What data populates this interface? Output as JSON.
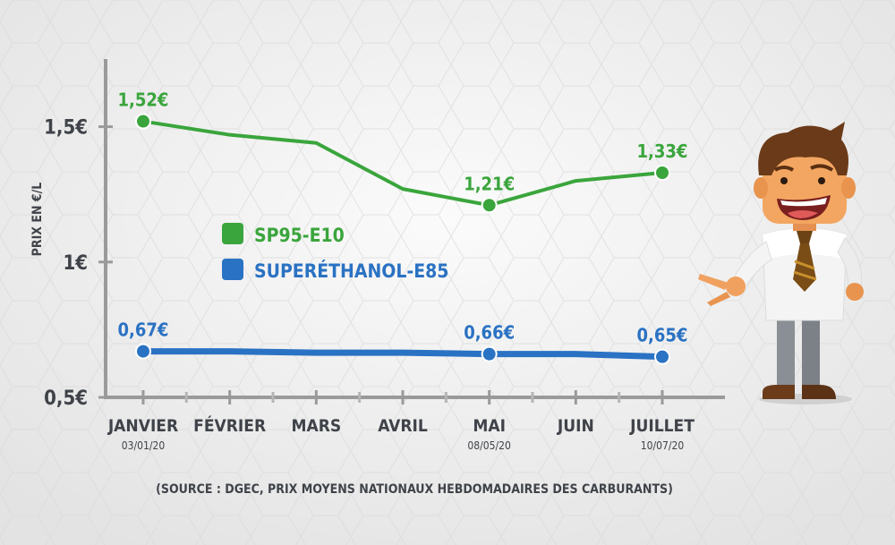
{
  "chart_data": {
    "type": "line",
    "ylabel": "PRIX EN €/L",
    "ylim": [
      0.5,
      1.75
    ],
    "yticks": [
      {
        "value": 0.5,
        "label": "0,5€"
      },
      {
        "value": 1.0,
        "label": "1€"
      },
      {
        "value": 1.5,
        "label": "1,5€"
      }
    ],
    "categories": [
      "JANVIER",
      "FÉVRIER",
      "MARS",
      "AVRIL",
      "MAI",
      "JUIN",
      "JUILLET"
    ],
    "category_dates": [
      "03/01/20",
      "",
      "",
      "",
      "08/05/20",
      "",
      "10/07/20"
    ],
    "series": [
      {
        "name": "SP95-E10",
        "color": "#3aa53c",
        "values": [
          1.52,
          1.47,
          1.44,
          1.27,
          1.21,
          1.3,
          1.33
        ],
        "labels": [
          "1,52€",
          "",
          "",
          "",
          "1,21€",
          "",
          "1,33€"
        ]
      },
      {
        "name": "SUPERÉTHANOL-E85",
        "color": "#2a72c3",
        "values": [
          0.67,
          0.67,
          0.665,
          0.665,
          0.66,
          0.66,
          0.65
        ],
        "labels": [
          "0,67€",
          "",
          "",
          "",
          "0,66€",
          "",
          "0,65€"
        ]
      }
    ],
    "legend": "center-left",
    "grid": false,
    "source": "(SOURCE : DGEC, PRIX MOYENS NATIONAUX HEBDOMADAIRES DES CARBURANTS)"
  },
  "icons": {
    "mascot": "businessman-pointing-icon"
  }
}
